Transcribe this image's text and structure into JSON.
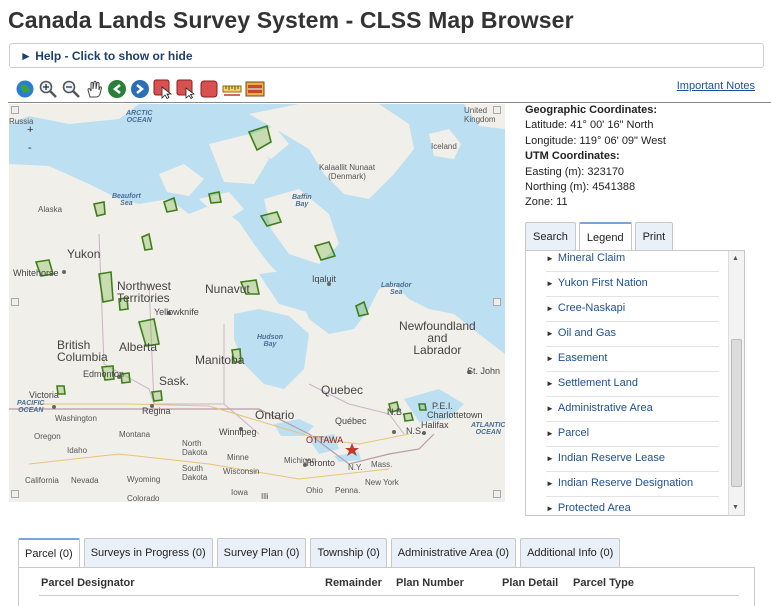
{
  "page": {
    "title": "Canada Lands Survey System - CLSS Map Browser",
    "help_label": "► Help - Click to show or hide",
    "important_notes": "Important Notes"
  },
  "toolbar": {
    "tools": [
      {
        "name": "globe-icon"
      },
      {
        "name": "zoom-in-icon"
      },
      {
        "name": "zoom-out-icon"
      },
      {
        "name": "pan-hand-icon"
      },
      {
        "name": "back-arrow-icon"
      },
      {
        "name": "forward-arrow-icon"
      },
      {
        "name": "select-arrow-icon"
      },
      {
        "name": "select-box-icon"
      },
      {
        "name": "stop-icon"
      },
      {
        "name": "measure-ruler-icon"
      },
      {
        "name": "map-scale-icon"
      }
    ]
  },
  "map": {
    "zoom_in": "+",
    "zoom_out": "-",
    "labels": {
      "russia": "Russia",
      "arctic_ocean": "ARCTIC\nOCEAN",
      "kalaallit": "Kalaallit Nunaat\n(Denmark)",
      "united_kingdom": "United\nKingdom",
      "iceland": "Iceland",
      "beaufort": "Beaufort\nSea",
      "baffin": "Baffin\nBay",
      "alaska": "Alaska",
      "yukon": "Yukon",
      "whitehorse": "Whitehorse",
      "nwt": "Northwest\nTerritories",
      "nunavut": "Nunavut",
      "iqaluit": "Iqaluit",
      "labrador_sea": "Labrador\nSea",
      "yellowknife": "Yellowknife",
      "hudson_bay": "Hudson\nBay",
      "newfoundland": "Newfoundland\nand\nLabrador",
      "british_columbia": "British\nColumbia",
      "alberta": "Alberta",
      "manitoba": "Manitoba",
      "edmonton": "Edmonton",
      "sask": "Sask.",
      "quebec": "Quebec",
      "st_john": "St. John",
      "victoria": "Victoria",
      "pacific_ocean": "PACIFIC\nOCEAN",
      "regina": "Regina",
      "ontario": "Ontario",
      "nb": "N.B.",
      "pei": "P.E.I.",
      "charlottetown": "Charlottetown",
      "halifax": "Halifax",
      "ns": "N.S.",
      "quebec_city": "Québec",
      "washington": "Washington",
      "winnipeg": "Winnipeg",
      "atlantic_ocean": "ATLANTIC\nOCEAN",
      "oregon": "Oregon",
      "montana": "Montana",
      "north_dakota": "North\nDakota",
      "ottawa": "OTTAWA",
      "minnesota": "Minne",
      "michigan": "Michigan",
      "toronto": "Toronto",
      "ny": "N.Y.",
      "mass": "Mass.",
      "idaho": "Idaho",
      "south_dakota": "South\nDakota",
      "wisconsin": "Wisconsin",
      "nyc": "New York",
      "wyoming": "Wyoming",
      "california": "California",
      "nevada": "Nevada",
      "colorado": "Colorado",
      "iowa": "Iowa",
      "ohio": "Ohio",
      "penna": "Penna.",
      "illinois": "Illi"
    }
  },
  "coordinates": {
    "geo_heading": "Geographic Coordinates:",
    "latitude": "Latitude: 41° 00' 16\" North",
    "longitude": "Longitude: 119° 06' 09\" West",
    "utm_heading": "UTM Coordinates:",
    "easting": "Easting (m): 323170",
    "northing": "Northing (m): 4541388",
    "zone": "Zone: 11"
  },
  "right_tabs": [
    {
      "label": "Search",
      "active": false
    },
    {
      "label": "Legend",
      "active": true
    },
    {
      "label": "Print",
      "active": false
    }
  ],
  "legend": {
    "items": [
      "Mineral Claim",
      "Yukon First Nation",
      "Cree-Naskapi",
      "Oil and Gas",
      "Easement",
      "Settlement Land",
      "Administrative Area",
      "Parcel",
      "Indian Reserve Lease",
      "Indian Reserve Designation",
      "Protected Area"
    ]
  },
  "bottom_tabs": [
    {
      "label": "Parcel (0)",
      "active": true
    },
    {
      "label": "Surveys in Progress (0)",
      "active": false
    },
    {
      "label": "Survey Plan (0)",
      "active": false
    },
    {
      "label": "Township (0)",
      "active": false
    },
    {
      "label": "Administrative Area (0)",
      "active": false
    },
    {
      "label": "Additional Info (0)",
      "active": false
    }
  ],
  "table": {
    "columns": [
      "Parcel Designator",
      "Remainder",
      "Plan Number",
      "Plan Detail",
      "Parcel Type"
    ]
  },
  "colors": {
    "water": "#bcdff2",
    "land": "#f1efe9",
    "parcel_outline": "#3f7f1b",
    "link": "#1f4f8f"
  }
}
